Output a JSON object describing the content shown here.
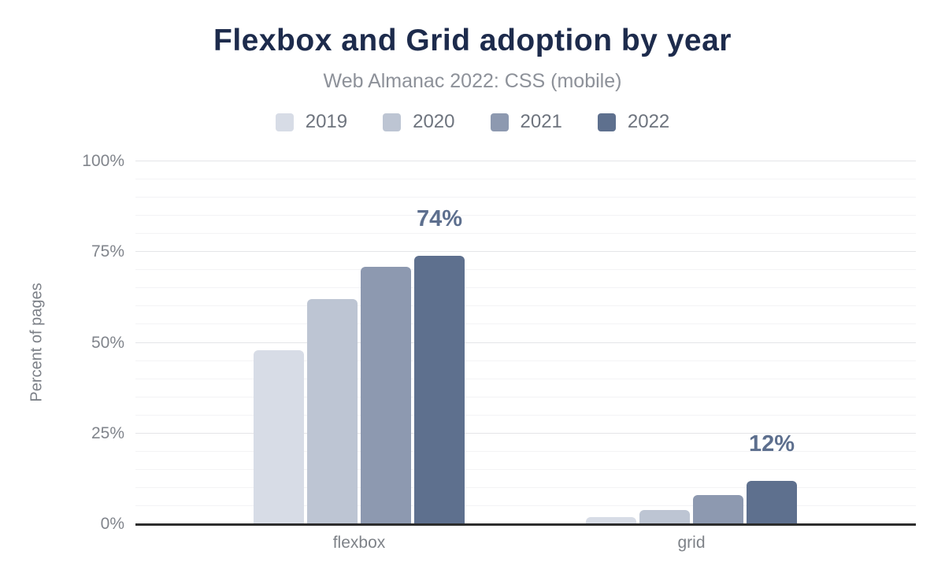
{
  "chart_data": {
    "type": "bar",
    "title": "Flexbox and Grid adoption by year",
    "subtitle": "Web Almanac 2022: CSS (mobile)",
    "ylabel": "Percent of pages",
    "xlabel": "",
    "categories": [
      "flexbox",
      "grid"
    ],
    "series": [
      {
        "name": "2019",
        "color": "#d7dce6",
        "values": [
          48,
          2
        ]
      },
      {
        "name": "2020",
        "color": "#bdc5d3",
        "values": [
          62,
          4
        ]
      },
      {
        "name": "2021",
        "color": "#8d99b0",
        "values": [
          71,
          8
        ]
      },
      {
        "name": "2022",
        "color": "#5e708e",
        "values": [
          74,
          12
        ]
      }
    ],
    "annotations": [
      {
        "category": "flexbox",
        "series": "2022",
        "text": "74%"
      },
      {
        "category": "grid",
        "series": "2022",
        "text": "12%"
      }
    ],
    "yticks": {
      "labels": [
        "0%",
        "25%",
        "50%",
        "75%",
        "100%"
      ],
      "values": [
        0,
        25,
        50,
        75,
        100
      ]
    },
    "ylim": [
      0,
      100
    ],
    "ygrid": {
      "minor_step": 5,
      "major_step": 25,
      "orientation": "horizontal"
    },
    "legend_position": "top",
    "colors": {
      "title": "#1d2b4c",
      "subtitle": "#8d9199",
      "legend_text": "#6e747e",
      "axis_text": "#81858c",
      "value_label": "#5d6f8e",
      "axis_line": "#2d2d2d"
    }
  }
}
